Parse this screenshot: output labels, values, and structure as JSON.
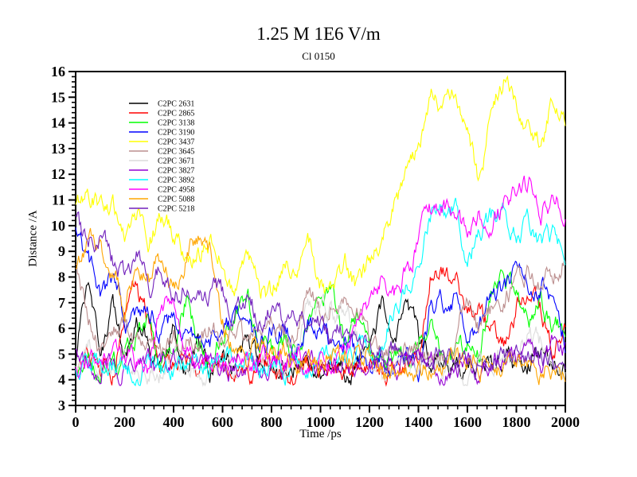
{
  "window": {
    "background": "#ffffff"
  },
  "chart": {
    "title": "1.25 M 1E6 V/m",
    "subtitle": "Cl 0150",
    "xlabel": "Time /ps",
    "ylabel": "Distance /A"
  },
  "chart_data": {
    "type": "line",
    "title": "1.25 M 1E6 V/m",
    "subtitle": "Cl 0150",
    "xlabel": "Time /ps",
    "ylabel": "Distance /A",
    "xlim": [
      0,
      2000
    ],
    "ylim": [
      3,
      16
    ],
    "x_major_step": 200,
    "x_minor_step": 40,
    "y_major_step": 1,
    "y_minor_step": 0.2,
    "grid": false,
    "frame": true,
    "axis_color": "#000000",
    "legend_position": "upper-left-inside",
    "x": [
      0,
      50,
      100,
      150,
      200,
      250,
      300,
      350,
      400,
      450,
      500,
      550,
      600,
      650,
      700,
      750,
      800,
      850,
      900,
      950,
      1000,
      1050,
      1100,
      1150,
      1200,
      1250,
      1300,
      1350,
      1400,
      1450,
      1500,
      1550,
      1600,
      1650,
      1700,
      1750,
      1800,
      1850,
      1900,
      1950,
      2000
    ],
    "series": [
      {
        "name": "C2PC 2631",
        "color": "#000000",
        "values": [
          4.6,
          8.2,
          5.2,
          6.8,
          4.8,
          6.2,
          5.4,
          4.6,
          5.8,
          4.6,
          5.2,
          4.5,
          4.8,
          4.4,
          5.6,
          4.5,
          4.8,
          4.4,
          4.6,
          5.2,
          4.5,
          4.8,
          4.4,
          4.6,
          5.4,
          6.6,
          5.2,
          6.8,
          5.6,
          4.8,
          4.5,
          4.7,
          4.4,
          4.6,
          4.4,
          4.7,
          4.5,
          4.8,
          5.3,
          4.6,
          4.5
        ]
      },
      {
        "name": "C2PC 2865",
        "color": "#FF0000",
        "values": [
          4.6,
          5.2,
          4.5,
          4.4,
          6.8,
          7.6,
          6.2,
          4.6,
          4.4,
          4.6,
          4.4,
          4.5,
          4.3,
          4.5,
          4.4,
          4.6,
          4.3,
          4.5,
          4.4,
          4.6,
          4.4,
          4.5,
          4.3,
          4.6,
          4.4,
          4.5,
          4.4,
          4.6,
          4.5,
          8.2,
          8.0,
          7.8,
          6.6,
          7.0,
          5.8,
          5.4,
          6.8,
          7.2,
          6.6,
          5.0,
          5.8
        ]
      },
      {
        "name": "C2PC 3138",
        "color": "#00FF00",
        "values": [
          4.4,
          4.6,
          4.4,
          4.8,
          4.5,
          5.6,
          6.2,
          4.8,
          5.4,
          7.2,
          5.4,
          4.8,
          5.6,
          6.4,
          7.6,
          5.6,
          4.8,
          5.4,
          4.8,
          6.2,
          7.8,
          7.2,
          5.6,
          6.4,
          4.8,
          5.2,
          4.6,
          5.0,
          5.6,
          6.4,
          5.2,
          4.8,
          5.4,
          5.0,
          7.4,
          7.8,
          7.2,
          6.6,
          7.0,
          6.2,
          6.2
        ]
      },
      {
        "name": "C2PC 3190",
        "color": "#0000FF",
        "values": [
          9.7,
          8.8,
          7.4,
          7.8,
          6.4,
          6.0,
          6.6,
          5.8,
          6.2,
          5.6,
          5.8,
          5.4,
          6.0,
          6.2,
          5.6,
          5.4,
          5.8,
          6.2,
          5.6,
          6.4,
          6.0,
          5.4,
          5.6,
          4.8,
          4.5,
          4.6,
          4.4,
          4.6,
          4.5,
          6.8,
          7.0,
          7.3,
          5.8,
          6.2,
          7.6,
          7.4,
          7.9,
          7.6,
          7.8,
          7.2,
          5.6
        ]
      },
      {
        "name": "C2PC 3437",
        "color": "#FFFF00",
        "values": [
          10.9,
          11.4,
          11.0,
          10.6,
          10.0,
          10.6,
          9.4,
          10.2,
          9.8,
          8.6,
          8.8,
          9.4,
          8.6,
          7.3,
          8.7,
          7.6,
          7.3,
          8.6,
          8.4,
          9.2,
          8.0,
          7.2,
          8.3,
          7.5,
          8.5,
          9.4,
          10.8,
          11.8,
          13.2,
          15.0,
          14.4,
          14.9,
          13.4,
          11.6,
          14.6,
          15.7,
          14.6,
          13.6,
          12.9,
          15.0,
          14.2
        ]
      },
      {
        "name": "C2PC 3645",
        "color": "#BC8F8F",
        "values": [
          8.6,
          6.4,
          5.0,
          5.6,
          6.2,
          5.4,
          5.8,
          5.2,
          5.6,
          6.0,
          5.4,
          6.2,
          5.6,
          6.0,
          5.4,
          5.8,
          6.2,
          5.6,
          6.0,
          7.4,
          6.6,
          7.2,
          6.8,
          7.0,
          5.4,
          5.0,
          4.8,
          5.2,
          4.8,
          5.0,
          4.8,
          5.4,
          7.2,
          5.8,
          6.6,
          7.2,
          7.8,
          8.2,
          7.8,
          8.4,
          8.8
        ]
      },
      {
        "name": "C2PC 3671",
        "color": "#DCDCDC",
        "values": [
          4.4,
          5.6,
          4.6,
          4.4,
          4.6,
          4.3,
          4.5,
          4.4,
          4.6,
          4.4,
          4.5,
          4.3,
          4.6,
          4.4,
          5.0,
          4.5,
          4.7,
          4.4,
          5.2,
          6.6,
          7.2,
          6.4,
          7.0,
          5.6,
          4.6,
          4.4,
          4.5,
          4.3,
          4.4,
          4.6,
          4.4,
          4.5,
          4.3,
          4.4,
          4.6,
          5.4,
          4.8,
          5.8,
          5.4,
          4.4,
          4.3
        ]
      },
      {
        "name": "C2PC 3827",
        "color": "#9400D3",
        "values": [
          4.9,
          4.6,
          4.5,
          4.7,
          4.5,
          4.6,
          4.4,
          4.6,
          4.5,
          4.7,
          4.5,
          4.6,
          4.4,
          4.5,
          4.6,
          4.4,
          4.6,
          4.5,
          4.7,
          4.5,
          4.6,
          4.4,
          4.6,
          4.5,
          4.6,
          4.4,
          4.5,
          4.7,
          4.5,
          4.6,
          4.5,
          4.7,
          4.5,
          4.6,
          4.8,
          5.2,
          4.8,
          5.6,
          4.8,
          5.4,
          5.2
        ]
      },
      {
        "name": "C2PC 3892",
        "color": "#00FFFF",
        "values": [
          4.6,
          4.5,
          4.7,
          5.0,
          4.6,
          4.5,
          4.7,
          4.5,
          4.6,
          4.4,
          4.6,
          4.5,
          4.7,
          4.5,
          4.6,
          4.4,
          4.6,
          4.5,
          4.7,
          4.5,
          4.6,
          4.8,
          4.6,
          5.4,
          5.0,
          5.6,
          6.8,
          7.6,
          9.0,
          10.6,
          11.2,
          10.9,
          8.6,
          9.6,
          10.2,
          10.7,
          10.0,
          10.2,
          9.4,
          9.8,
          8.9
        ]
      },
      {
        "name": "C2PC 4958",
        "color": "#FF00FF",
        "values": [
          4.7,
          4.5,
          4.8,
          4.6,
          4.5,
          4.7,
          4.5,
          6.6,
          7.4,
          5.0,
          4.6,
          4.5,
          4.7,
          4.5,
          4.6,
          4.5,
          4.7,
          4.6,
          4.8,
          4.6,
          4.7,
          4.6,
          5.2,
          6.2,
          7.2,
          7.9,
          7.4,
          8.2,
          9.3,
          10.4,
          10.8,
          10.2,
          9.6,
          10.4,
          9.8,
          10.8,
          11.2,
          11.6,
          10.6,
          11.0,
          10.4
        ]
      },
      {
        "name": "C2PC 5088",
        "color": "#FFA500",
        "values": [
          8.2,
          9.4,
          9.0,
          8.3,
          7.0,
          8.2,
          7.8,
          8.6,
          7.6,
          8.8,
          9.6,
          8.8,
          6.4,
          5.2,
          4.8,
          5.4,
          4.8,
          5.2,
          4.7,
          5.0,
          4.6,
          4.8,
          4.6,
          4.8,
          4.5,
          4.7,
          4.5,
          4.6,
          4.4,
          4.6,
          4.5,
          4.7,
          4.5,
          4.6,
          4.4,
          4.6,
          4.5,
          4.7,
          4.4,
          4.6,
          4.4
        ]
      },
      {
        "name": "C2PC 5218",
        "color": "#7221BC",
        "values": [
          10.2,
          9.2,
          9.8,
          8.6,
          8.0,
          8.8,
          7.6,
          8.4,
          7.2,
          7.8,
          7.0,
          7.6,
          7.2,
          6.6,
          7.2,
          6.4,
          7.0,
          6.2,
          6.6,
          6.0,
          6.4,
          5.6,
          6.0,
          5.2,
          5.4,
          4.9,
          5.2,
          4.8,
          5.0,
          4.7,
          5.0,
          4.7,
          4.9,
          4.7,
          5.0,
          4.8,
          5.1,
          4.8,
          5.0,
          4.7,
          4.9
        ]
      }
    ]
  }
}
